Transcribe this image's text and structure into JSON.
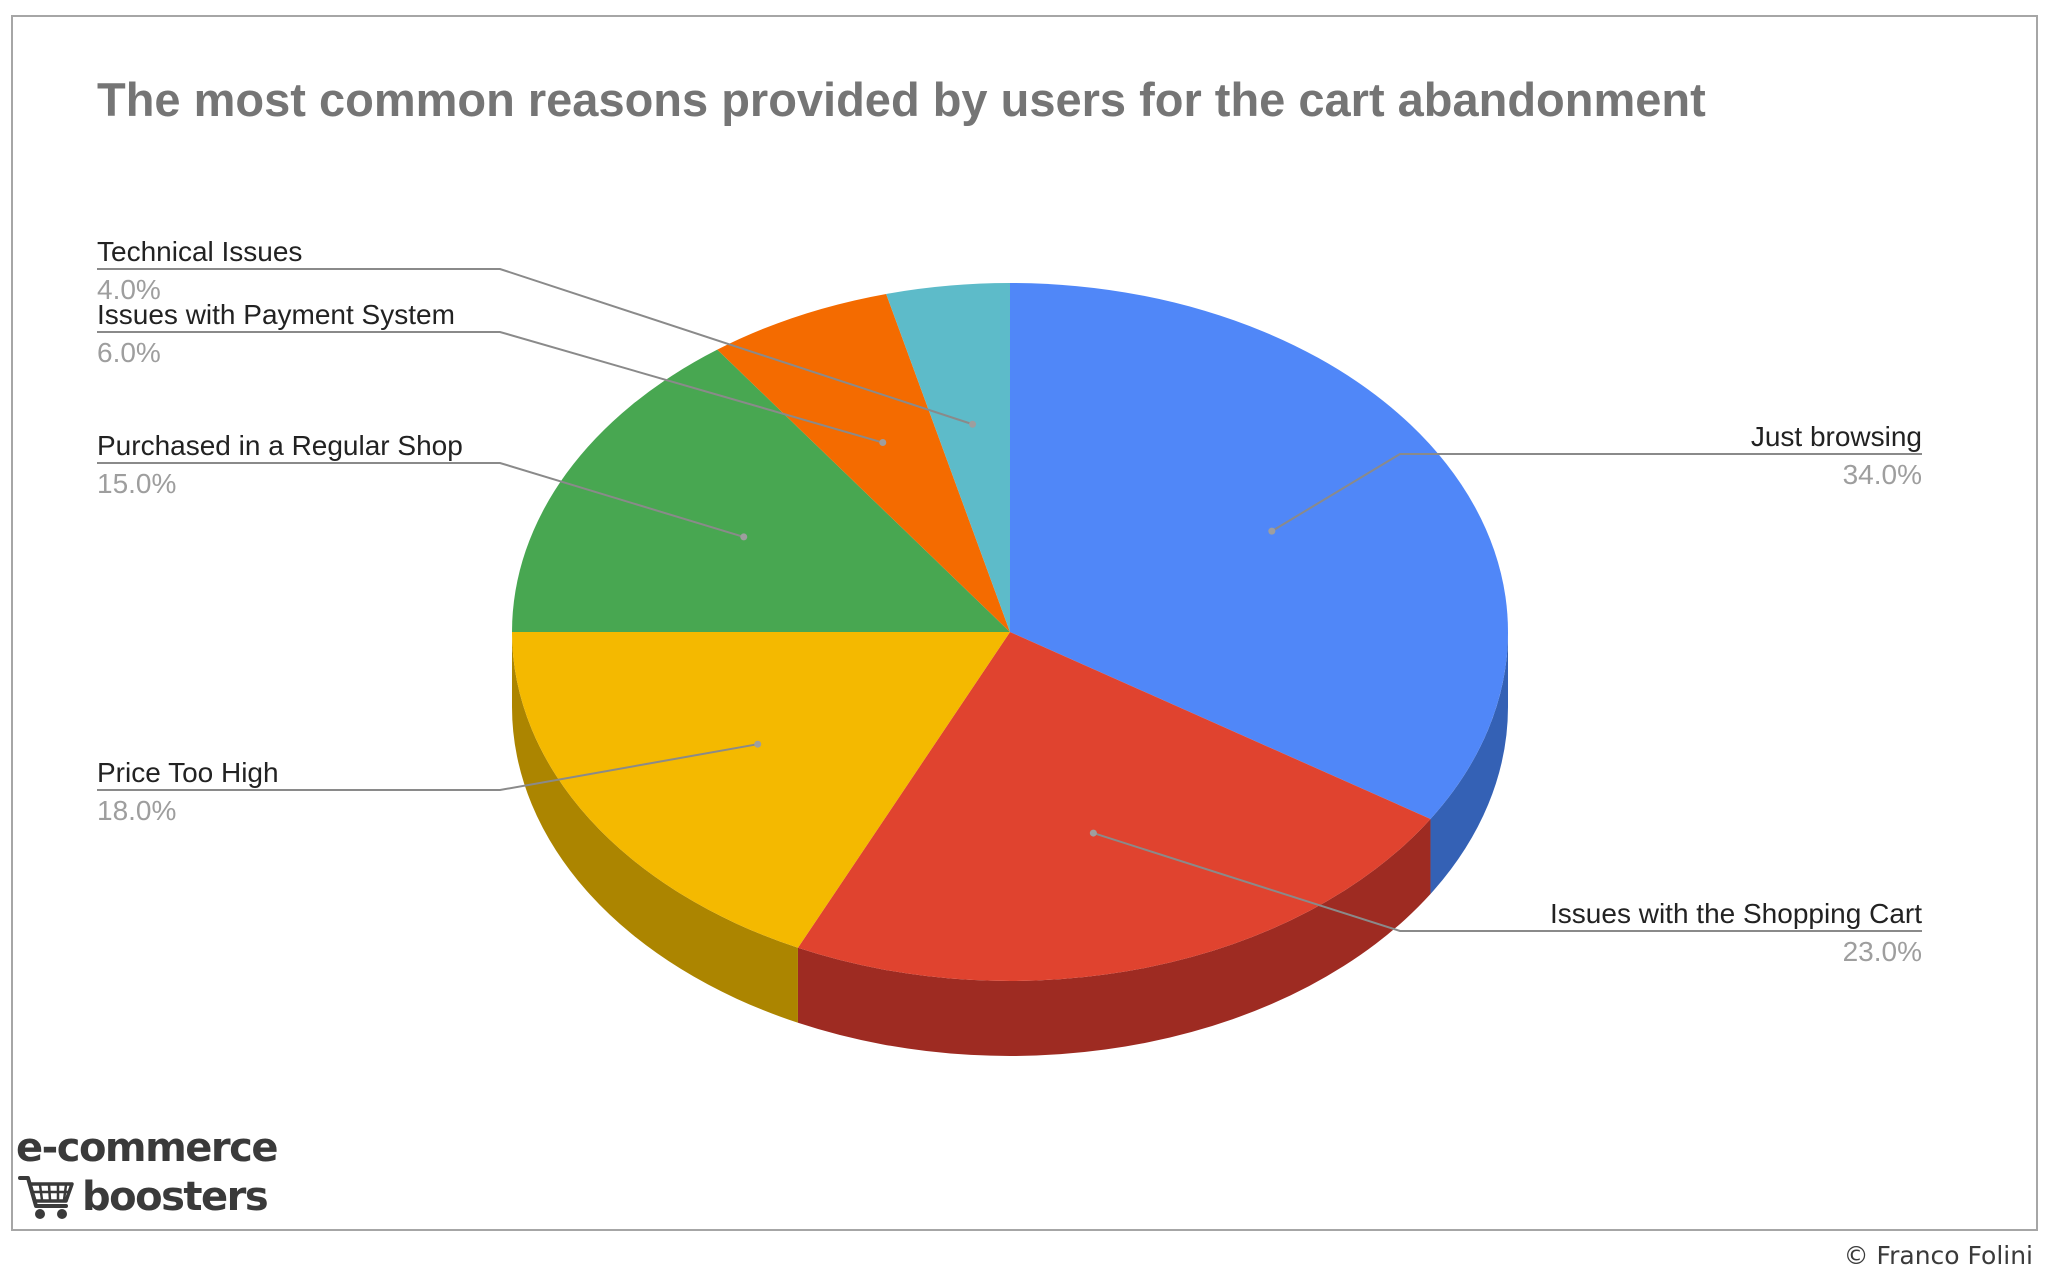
{
  "chart_data": {
    "type": "pie",
    "title": "The most common reasons provided by users for the cart abandonment",
    "slices": [
      {
        "label": "Just browsing",
        "value": 34.0,
        "value_label": "34.0%",
        "color": "#5087F8",
        "side_color": "#3461B5",
        "label_side": "right"
      },
      {
        "label": "Issues with the Shopping Cart",
        "value": 23.0,
        "value_label": "23.0%",
        "color": "#E0432F",
        "side_color": "#9E2B22",
        "label_side": "right"
      },
      {
        "label": "Price Too High",
        "value": 18.0,
        "value_label": "18.0%",
        "color": "#F4B900",
        "side_color": "#AC8500",
        "label_side": "left"
      },
      {
        "label": "Purchased in a Regular Shop",
        "value": 15.0,
        "value_label": "15.0%",
        "color": "#48A751",
        "side_color": "#2F7537",
        "label_side": "left"
      },
      {
        "label": "Issues with Payment System",
        "value": 6.0,
        "value_label": "6.0%",
        "color": "#F46B00",
        "side_color": "#AA4B00",
        "label_side": "left"
      },
      {
        "label": "Technical Issues",
        "value": 4.0,
        "value_label": "4.0%",
        "color": "#5DBBC9",
        "side_color": "#3E8790",
        "label_side": "left"
      }
    ],
    "label_color": "#222222",
    "value_color": "#9e9e9e",
    "leader_color": "#8a8a8a",
    "style": "3d"
  },
  "branding": {
    "logo_line1": "e-commerce",
    "logo_line2": "boosters",
    "logo_icon": "shopping-cart-icon",
    "copyright": "© Franco Folini"
  }
}
